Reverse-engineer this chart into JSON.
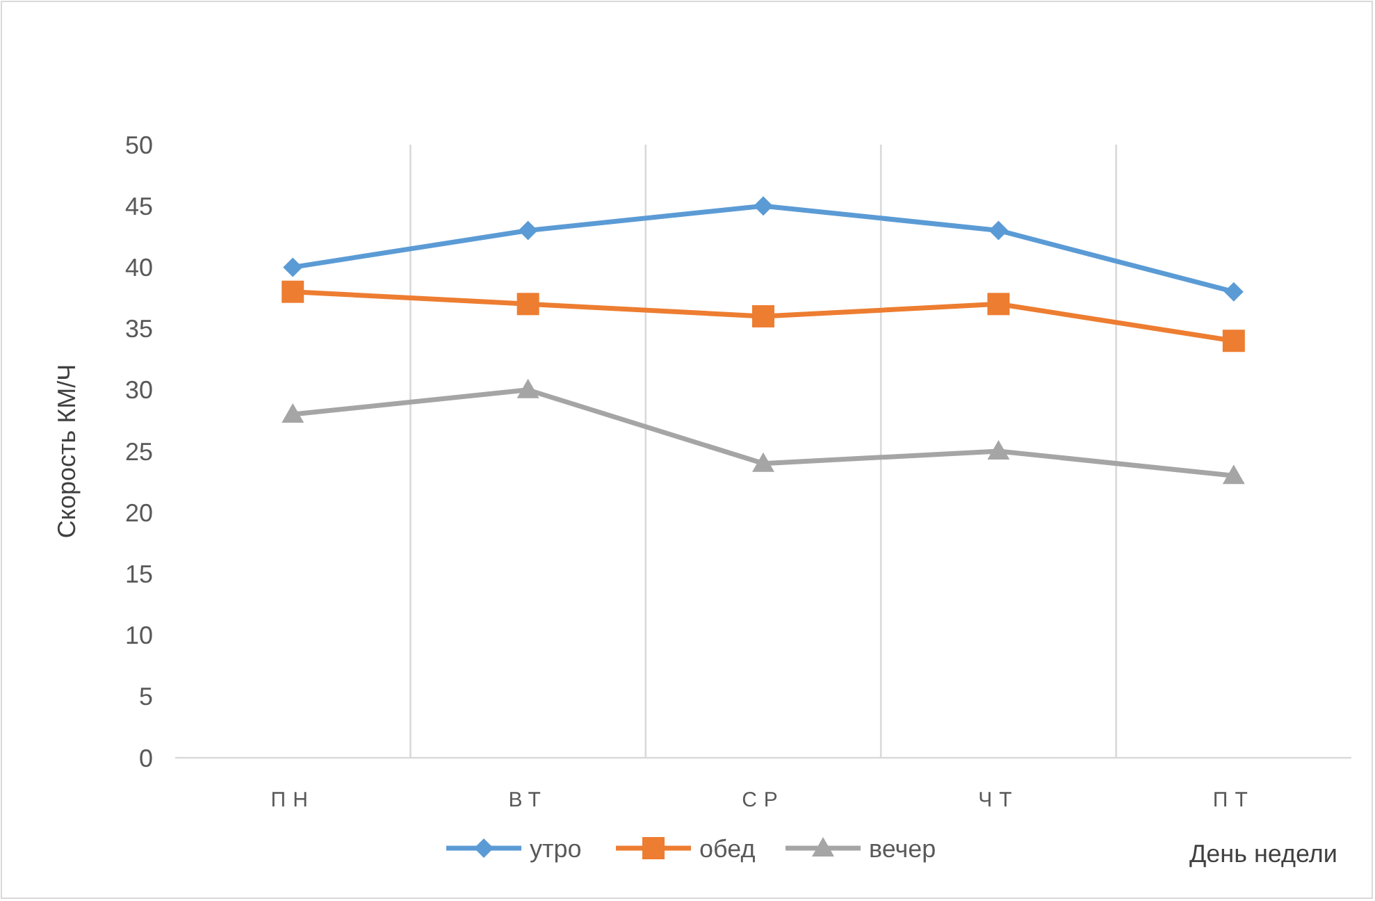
{
  "chart_data": {
    "type": "line",
    "xlabel": "День недели",
    "ylabel": "Скорость КМ/Ч",
    "categories": [
      "ПН",
      "ВТ",
      "СР",
      "ЧТ",
      "ПТ"
    ],
    "series": [
      {
        "name": "утро",
        "color": "#5b9bd5",
        "marker": "diamond",
        "values": [
          40,
          43,
          45,
          43,
          38
        ]
      },
      {
        "name": "обед",
        "color": "#ed7d31",
        "marker": "square",
        "values": [
          38,
          37,
          36,
          37,
          34
        ]
      },
      {
        "name": "вечер",
        "color": "#a5a5a5",
        "marker": "triangle",
        "values": [
          28,
          30,
          24,
          25,
          23
        ]
      }
    ],
    "ylim": [
      0,
      50
    ],
    "yticks": [
      0,
      5,
      10,
      15,
      20,
      25,
      30,
      35,
      40,
      45,
      50
    ],
    "grid": "x",
    "legend": "bottom",
    "line_style": "solid"
  }
}
